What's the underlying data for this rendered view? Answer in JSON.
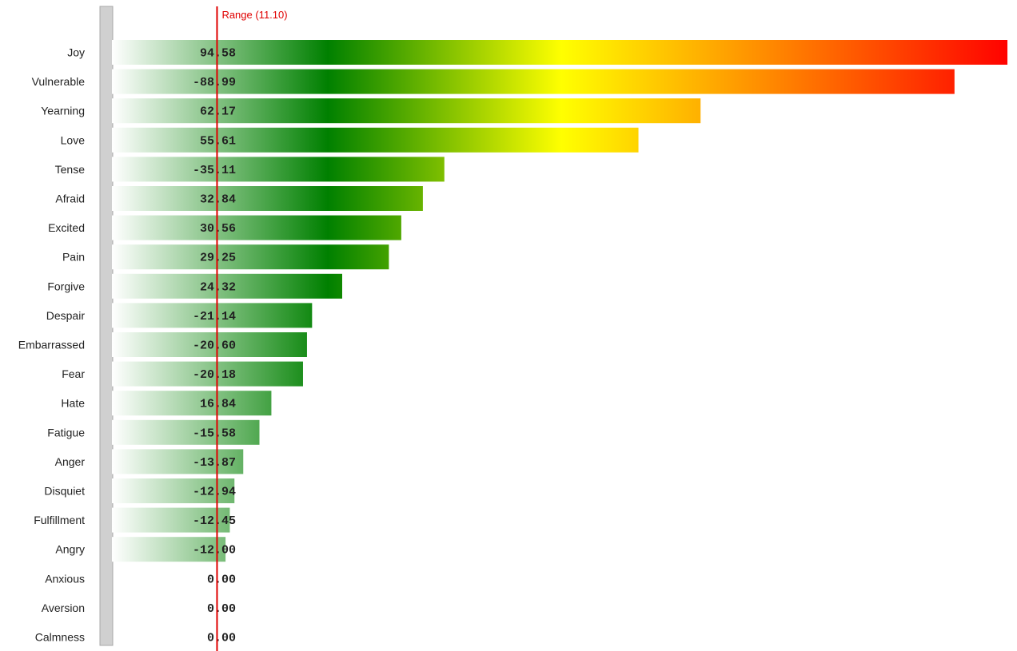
{
  "chart_data": {
    "type": "bar",
    "orientation": "horizontal",
    "categories": [
      "Joy",
      "Vulnerable",
      "Yearning",
      "Love",
      "Tense",
      "Afraid",
      "Excited",
      "Pain",
      "Forgive",
      "Despair",
      "Embarrassed",
      "Fear",
      "Hate",
      "Fatigue",
      "Anger",
      "Disquiet",
      "Fulfillment",
      "Angry",
      "Anxious",
      "Aversion",
      "Calmness"
    ],
    "values": [
      94.58,
      -88.99,
      62.17,
      55.61,
      -35.11,
      32.84,
      30.56,
      29.25,
      24.32,
      -21.14,
      -20.6,
      -20.18,
      16.84,
      -15.58,
      -13.87,
      -12.94,
      -12.45,
      -12.0,
      0.0,
      0.0,
      0.0
    ],
    "value_labels": [
      "94.58",
      "-88.99",
      "62.17",
      "55.61",
      "-35.11",
      "32.84",
      "30.56",
      "29.25",
      "24.32",
      "-21.14",
      "-20.60",
      "-20.18",
      "16.84",
      "-15.58",
      "-13.87",
      "-12.94",
      "-12.45",
      "-12.00",
      "0.00",
      "0.00",
      "0.00"
    ],
    "bar_length": "absolute value",
    "xlim": [
      0,
      95
    ],
    "reference_line": {
      "label": "Range (11.10)",
      "value": 11.1,
      "color": "#e00000"
    },
    "gradient_colors": [
      "#ffffff",
      "#008000",
      "#ffff00",
      "#ff0000"
    ],
    "grid": false,
    "legend": "none"
  }
}
